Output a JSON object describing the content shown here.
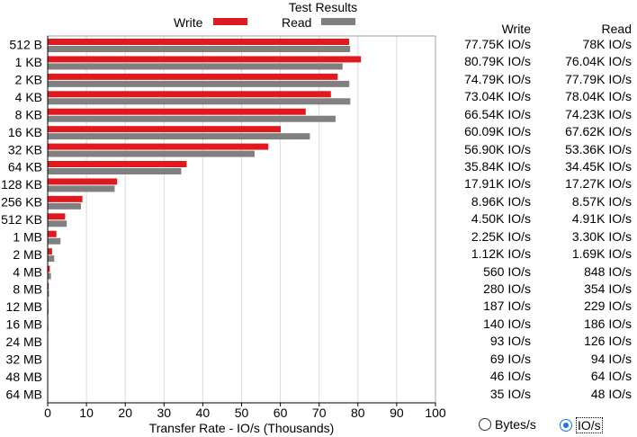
{
  "chart_data": {
    "type": "bar",
    "title": "Test Results",
    "xlabel": "Transfer Rate - IO/s (Thousands)",
    "xlim": [
      0,
      100
    ],
    "xticks": [
      "0",
      "10",
      "20",
      "30",
      "40",
      "50",
      "60",
      "70",
      "80",
      "90",
      "100"
    ],
    "grid": true,
    "legend_placement": "top",
    "categories": [
      "512 B",
      "1 KB",
      "2 KB",
      "4 KB",
      "8 KB",
      "16 KB",
      "32 KB",
      "64 KB",
      "128 KB",
      "256 KB",
      "512 KB",
      "1 MB",
      "2 MB",
      "4 MB",
      "8 MB",
      "12 MB",
      "16 MB",
      "24 MB",
      "32 MB",
      "48 MB",
      "64 MB"
    ],
    "series": [
      {
        "name": "Write",
        "color": "#e0191f",
        "values": [
          77.75,
          80.79,
          74.79,
          73.04,
          66.54,
          60.09,
          56.9,
          35.84,
          17.91,
          8.96,
          4.5,
          2.25,
          1.12,
          0.56,
          0.28,
          0.187,
          0.14,
          0.093,
          0.069,
          0.046,
          0.035
        ]
      },
      {
        "name": "Read",
        "color": "#808080",
        "values": [
          78.0,
          76.04,
          77.79,
          78.04,
          74.23,
          67.62,
          53.36,
          34.45,
          17.27,
          8.57,
          4.91,
          3.3,
          1.69,
          0.848,
          0.354,
          0.229,
          0.186,
          0.126,
          0.094,
          0.064,
          0.048
        ]
      }
    ]
  },
  "table": {
    "write_header": "Write",
    "read_header": "Read",
    "rows": [
      {
        "write": "77.75K IO/s",
        "read": "78K IO/s"
      },
      {
        "write": "80.79K IO/s",
        "read": "76.04K IO/s"
      },
      {
        "write": "74.79K IO/s",
        "read": "77.79K IO/s"
      },
      {
        "write": "73.04K IO/s",
        "read": "78.04K IO/s"
      },
      {
        "write": "66.54K IO/s",
        "read": "74.23K IO/s"
      },
      {
        "write": "60.09K IO/s",
        "read": "67.62K IO/s"
      },
      {
        "write": "56.90K IO/s",
        "read": "53.36K IO/s"
      },
      {
        "write": "35.84K IO/s",
        "read": "34.45K IO/s"
      },
      {
        "write": "17.91K IO/s",
        "read": "17.27K IO/s"
      },
      {
        "write": "8.96K IO/s",
        "read": "8.57K IO/s"
      },
      {
        "write": "4.50K IO/s",
        "read": "4.91K IO/s"
      },
      {
        "write": "2.25K IO/s",
        "read": "3.30K IO/s"
      },
      {
        "write": "1.12K IO/s",
        "read": "1.69K IO/s"
      },
      {
        "write": "560 IO/s",
        "read": "848 IO/s"
      },
      {
        "write": "280 IO/s",
        "read": "354 IO/s"
      },
      {
        "write": "187 IO/s",
        "read": "229 IO/s"
      },
      {
        "write": "140 IO/s",
        "read": "186 IO/s"
      },
      {
        "write": "93 IO/s",
        "read": "126 IO/s"
      },
      {
        "write": "69 IO/s",
        "read": "94 IO/s"
      },
      {
        "write": "46 IO/s",
        "read": "64 IO/s"
      },
      {
        "write": "35 IO/s",
        "read": "48 IO/s"
      }
    ]
  },
  "units_toggle": {
    "bytes_label": "Bytes/s",
    "ios_label": "IO/s",
    "selected": "IO/s"
  }
}
